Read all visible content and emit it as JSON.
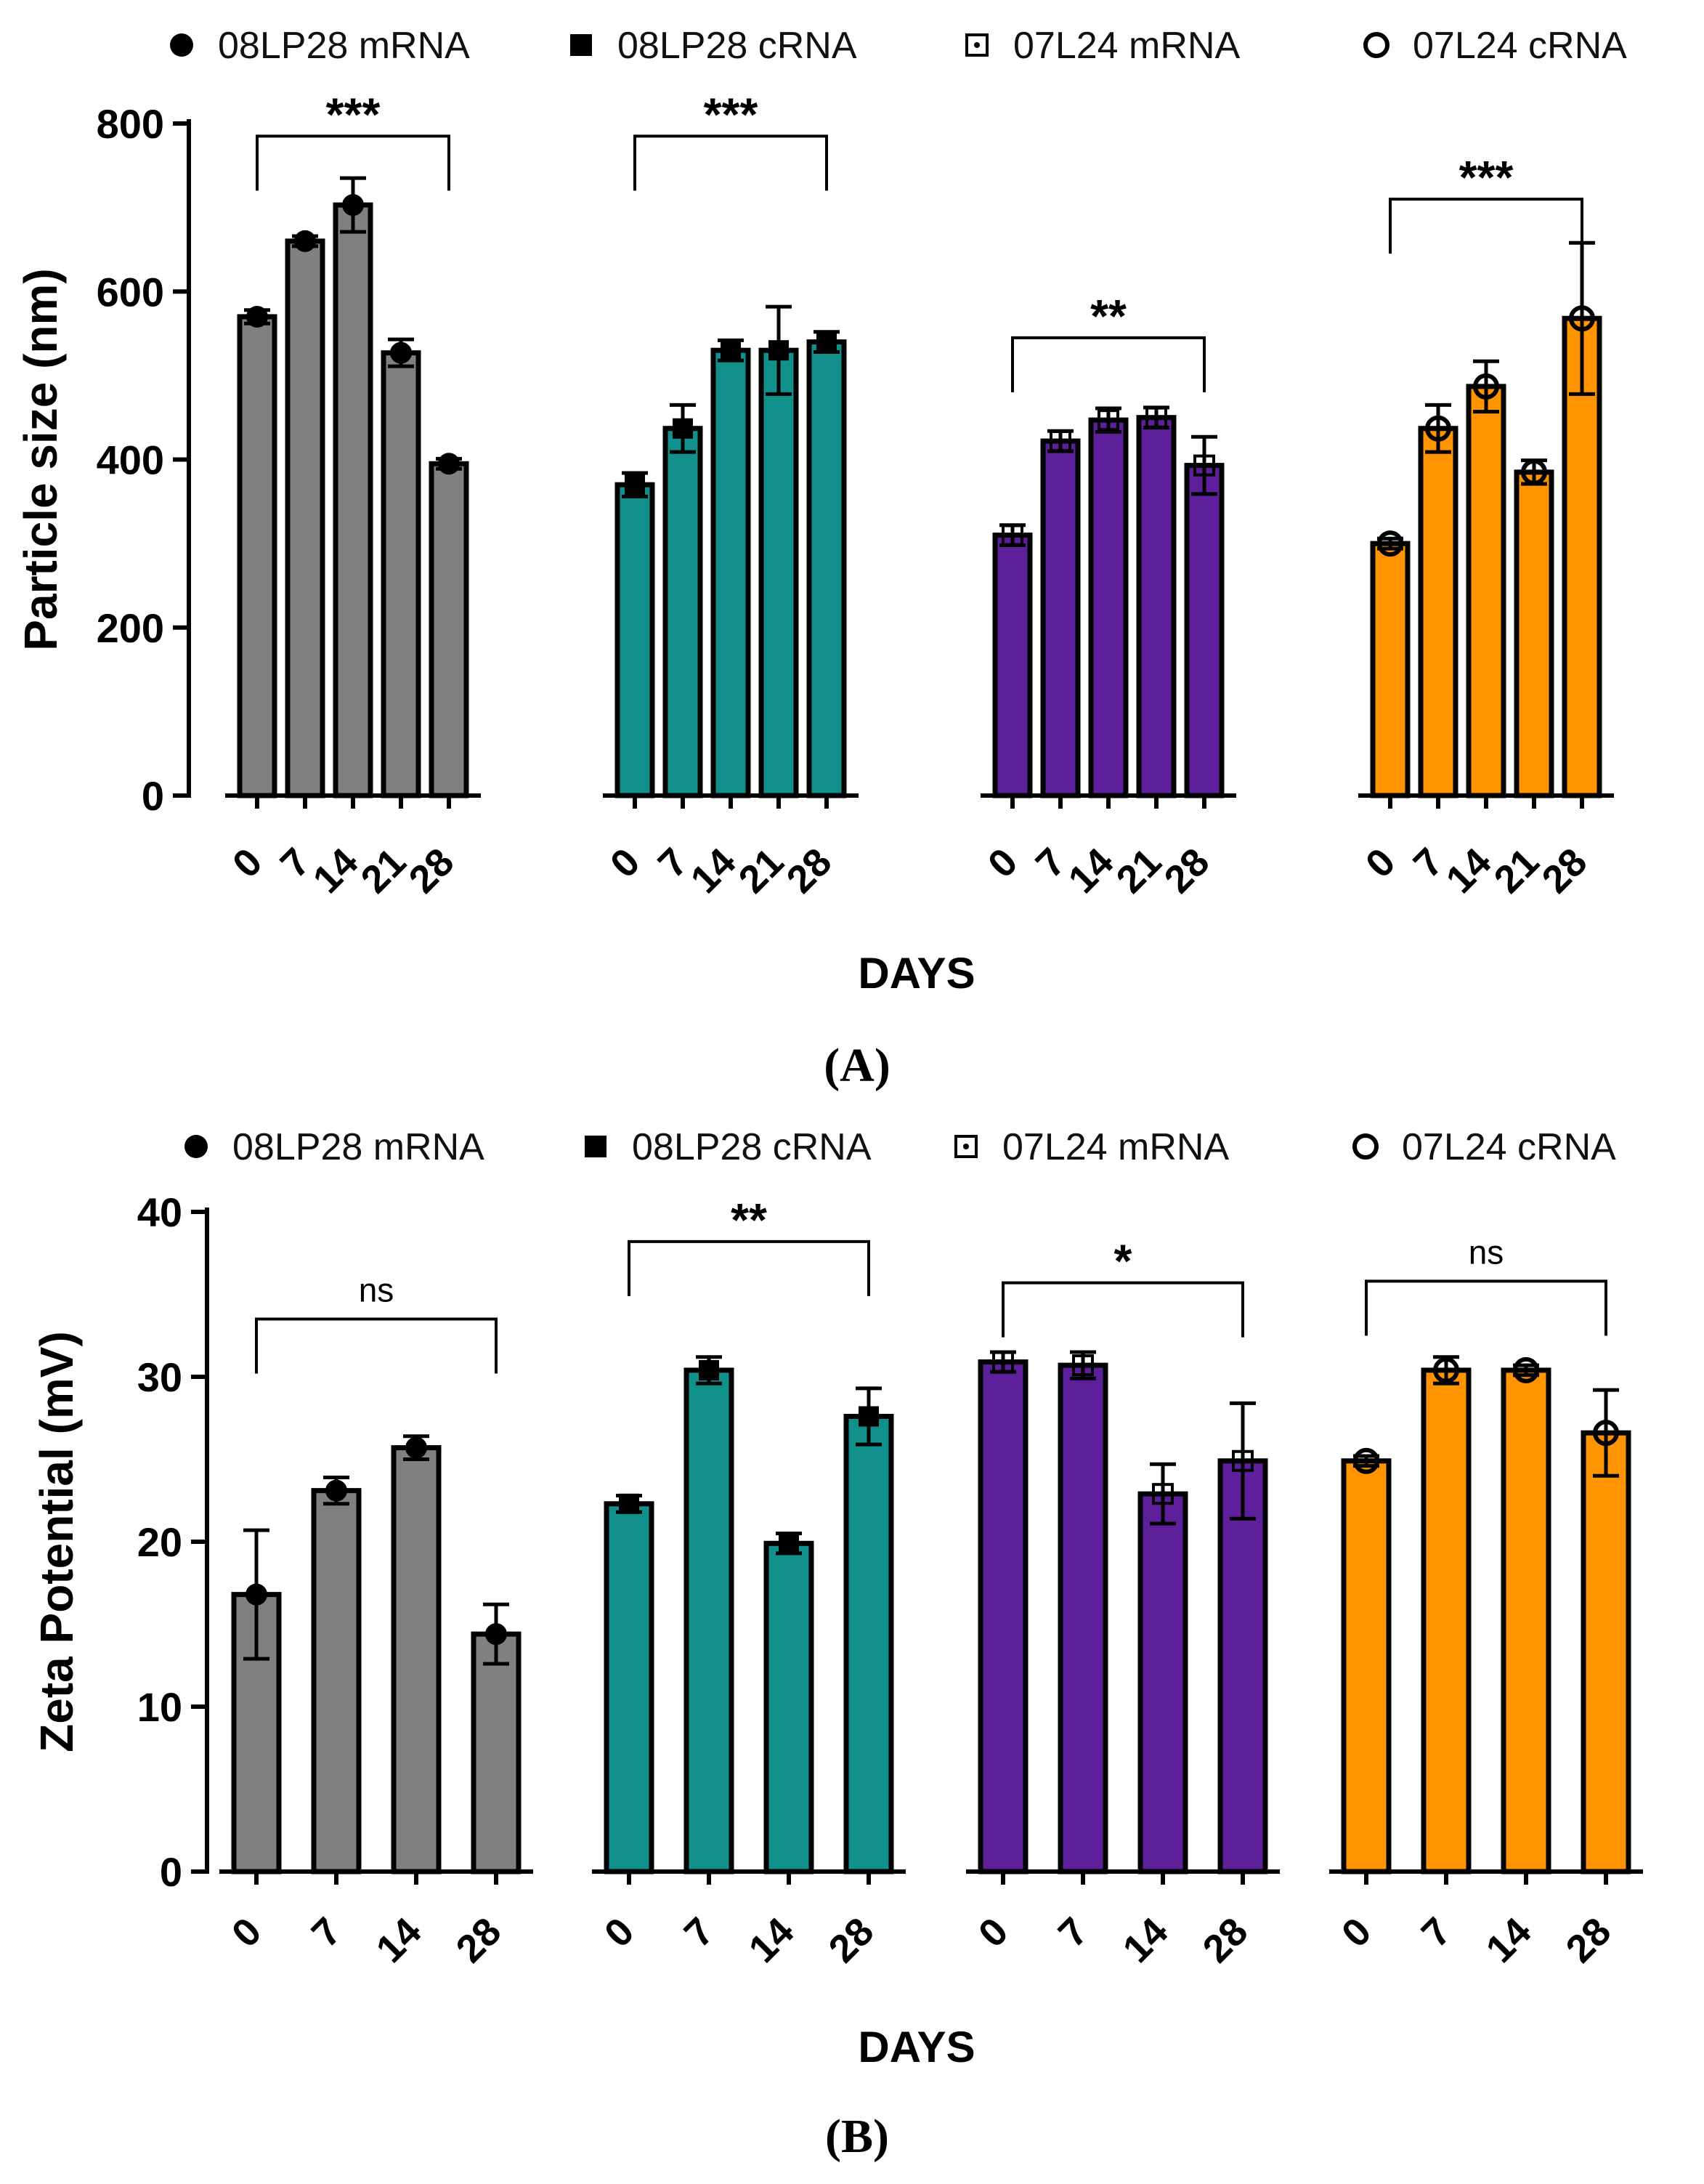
{
  "chart_data": [
    {
      "panel_label": "(A)",
      "type": "bar",
      "ylabel": "Particle size (nm)",
      "xlabel": "DAYS",
      "ylim": [
        0,
        800
      ],
      "yticks": [
        "0",
        "200",
        "400",
        "600",
        "800"
      ],
      "legend": {
        "placement": "top",
        "entries": [
          {
            "label": "08LP28 mRNA",
            "marker": "filled-circle"
          },
          {
            "label": "08LP28 cRNA",
            "marker": "filled-square"
          },
          {
            "label": "07L24 mRNA",
            "marker": "dotted-square"
          },
          {
            "label": "07L24 cRNA",
            "marker": "open-circle"
          }
        ]
      },
      "groups": [
        {
          "name": "08LP28 mRNA",
          "color": "#808080",
          "days": [
            "0",
            "7",
            "14",
            "21",
            "28"
          ],
          "values": [
            570,
            660,
            703,
            527,
            395
          ],
          "errors": [
            8,
            6,
            32,
            16,
            6
          ],
          "sig": {
            "text": "***",
            "from": 0,
            "to": 4,
            "level": 785
          }
        },
        {
          "name": "08LP28 cRNA",
          "color": "#12918C",
          "days": [
            "0",
            "7",
            "14",
            "21",
            "28"
          ],
          "values": [
            370,
            437,
            530,
            530,
            540
          ],
          "errors": [
            14,
            28,
            12,
            52,
            12
          ],
          "sig": {
            "text": "***",
            "from": 0,
            "to": 4,
            "level": 785
          }
        },
        {
          "name": "07L24 mRNA",
          "color": "#5E1F9B",
          "days": [
            "0",
            "7",
            "14",
            "21",
            "28"
          ],
          "values": [
            310,
            422,
            447,
            450,
            393
          ],
          "errors": [
            12,
            12,
            14,
            12,
            34
          ],
          "sig": {
            "text": "**",
            "from": 0,
            "to": 4,
            "level": 545
          }
        },
        {
          "name": "07L24 cRNA",
          "color": "#FF9300",
          "days": [
            "0",
            "7",
            "14",
            "21",
            "28"
          ],
          "values": [
            300,
            437,
            487,
            385,
            568
          ],
          "errors": [
            6,
            28,
            30,
            14,
            90
          ],
          "sig": {
            "text": "***",
            "from": 0,
            "to": 4,
            "level": 710
          }
        }
      ]
    },
    {
      "panel_label": "(B)",
      "type": "bar",
      "ylabel": "Zeta Potential (mV)",
      "xlabel": "DAYS",
      "ylim": [
        0,
        40
      ],
      "yticks": [
        "0",
        "10",
        "20",
        "30",
        "40"
      ],
      "legend": {
        "placement": "top",
        "entries": [
          {
            "label": "08LP28 mRNA",
            "marker": "filled-circle"
          },
          {
            "label": "08LP28 cRNA",
            "marker": "filled-square"
          },
          {
            "label": "07L24 mRNA",
            "marker": "dotted-square"
          },
          {
            "label": "07L24 cRNA",
            "marker": "open-circle"
          }
        ]
      },
      "groups": [
        {
          "name": "08LP28 mRNA",
          "color": "#808080",
          "days": [
            "0",
            "7",
            "14",
            "28"
          ],
          "values": [
            16.8,
            23.1,
            25.7,
            14.4
          ],
          "errors": [
            3.9,
            0.8,
            0.7,
            1.8
          ],
          "sig": {
            "text": "ns",
            "from": 0,
            "to": 3,
            "level": 33.5
          }
        },
        {
          "name": "08LP28 cRNA",
          "color": "#12918C",
          "days": [
            "0",
            "7",
            "14",
            "28"
          ],
          "values": [
            22.3,
            30.4,
            19.9,
            27.6
          ],
          "errors": [
            0.5,
            0.8,
            0.6,
            1.7
          ],
          "sig": {
            "text": "**",
            "from": 0,
            "to": 3,
            "level": 38.2
          }
        },
        {
          "name": "07L24 mRNA",
          "color": "#5E1F9B",
          "days": [
            "0",
            "7",
            "14",
            "28"
          ],
          "values": [
            30.9,
            30.7,
            22.9,
            24.9
          ],
          "errors": [
            0.6,
            0.8,
            1.8,
            3.5
          ],
          "sig": {
            "text": "*",
            "from": 0,
            "to": 3,
            "level": 35.7
          }
        },
        {
          "name": "07L24 cRNA",
          "color": "#FF9300",
          "days": [
            "0",
            "7",
            "14",
            "28"
          ],
          "values": [
            24.9,
            30.4,
            30.4,
            26.6
          ],
          "errors": [
            0.3,
            0.8,
            0.3,
            2.6
          ],
          "sig": {
            "text": "ns",
            "from": 0,
            "to": 3,
            "level": 35.8
          }
        }
      ]
    }
  ]
}
